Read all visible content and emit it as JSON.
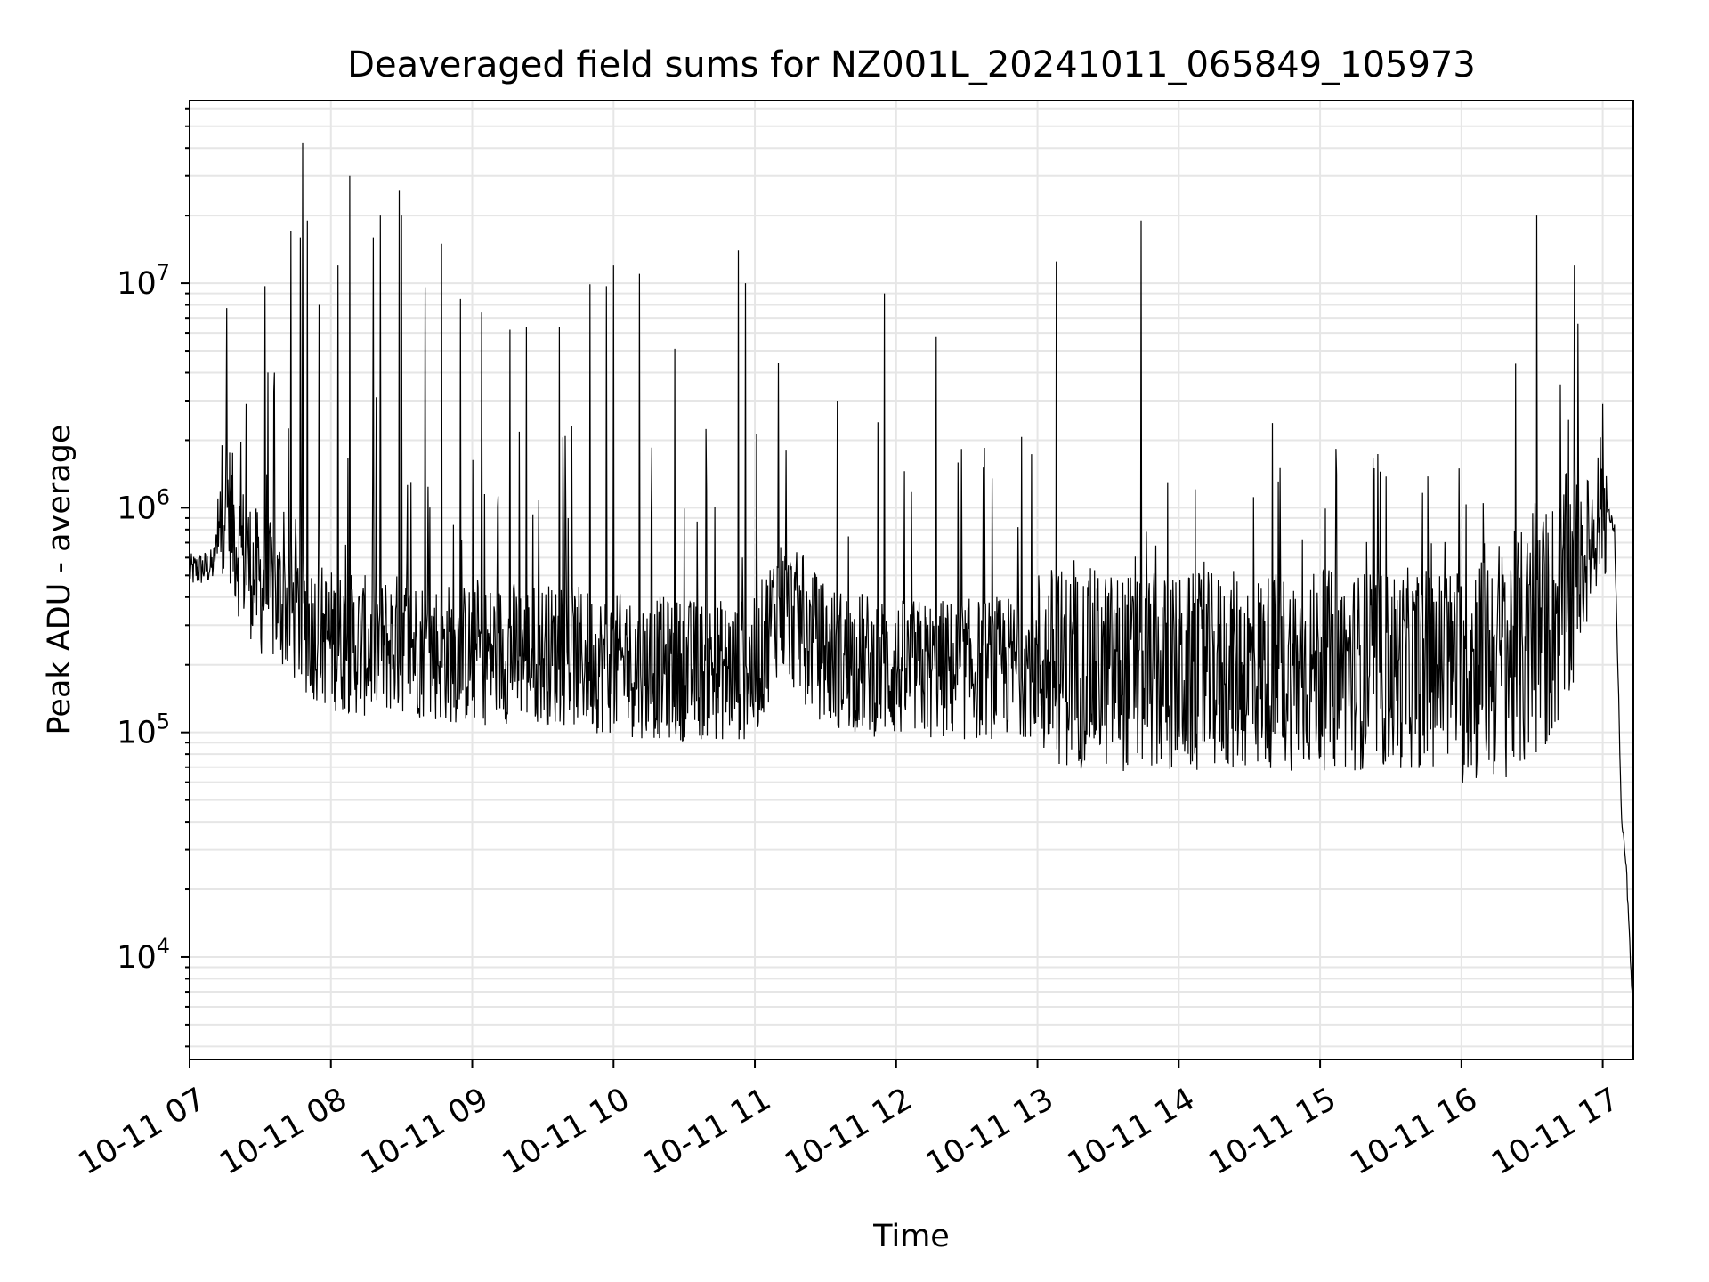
{
  "chart_data": {
    "type": "line",
    "title": "Deaveraged field sums for NZ001L_20241011_065849_105973",
    "xlabel": "Time",
    "ylabel": "Peak ADU - average",
    "yscale": "log",
    "grid": true,
    "line_color": "#000000",
    "grid_color": "#e6e6e6",
    "xlim": [
      "10-11 07:00",
      "10-11 17:13"
    ],
    "ylim": [
      3500,
      65000000
    ],
    "x_ticks": [
      "10-11 07",
      "10-11 08",
      "10-11 09",
      "10-11 10",
      "10-11 11",
      "10-11 12",
      "10-11 13",
      "10-11 14",
      "10-11 15",
      "10-11 16",
      "10-11 17"
    ],
    "y_ticks": [
      {
        "value": 10000,
        "base": "10",
        "exp": "4"
      },
      {
        "value": 100000,
        "base": "10",
        "exp": "5"
      },
      {
        "value": 1000000,
        "base": "10",
        "exp": "6"
      },
      {
        "value": 10000000,
        "base": "10",
        "exp": "7"
      }
    ],
    "series": [
      {
        "x": [
          "10-11 07:00",
          "10-11 07:10",
          "10-11 07:15",
          "10-11 07:20",
          "10-11 07:30",
          "10-11 07:40",
          "10-11 07:50",
          "10-11 08:00",
          "10-11 08:15",
          "10-11 08:30",
          "10-11 08:45",
          "10-11 09:00",
          "10-11 09:20",
          "10-11 09:40",
          "10-11 10:00",
          "10-11 10:30",
          "10-11 11:00",
          "10-11 11:10",
          "10-11 11:30",
          "10-11 12:00",
          "10-11 12:30",
          "10-11 13:00",
          "10-11 13:30",
          "10-11 14:00",
          "10-11 14:30",
          "10-11 15:00",
          "10-11 15:30",
          "10-11 16:00",
          "10-11 16:30",
          "10-11 16:50",
          "10-11 17:00",
          "10-11 17:05",
          "10-11 17:08",
          "10-11 17:10",
          "10-11 17:13"
        ],
        "y": [
          520000,
          550000,
          1200000,
          700000,
          450000,
          380000,
          300000,
          260000,
          240000,
          250000,
          230000,
          220000,
          230000,
          220000,
          200000,
          190000,
          190000,
          380000,
          220000,
          190000,
          190000,
          200000,
          190000,
          180000,
          190000,
          190000,
          190000,
          200000,
          230000,
          500000,
          1100000,
          800000,
          40000,
          25000,
          5000
        ]
      }
    ],
    "spikes": [
      {
        "x": "10-11 07:12",
        "y": 1100000
      },
      {
        "x": "10-11 07:24",
        "y": 2900000
      },
      {
        "x": "10-11 07:32",
        "y": 9700000
      },
      {
        "x": "10-11 07:36",
        "y": 4000000
      },
      {
        "x": "10-11 07:43",
        "y": 17000000
      },
      {
        "x": "10-11 07:47",
        "y": 16000000
      },
      {
        "x": "10-11 07:48",
        "y": 42000000
      },
      {
        "x": "10-11 07:50",
        "y": 19000000
      },
      {
        "x": "10-11 07:55",
        "y": 8000000
      },
      {
        "x": "10-11 08:03",
        "y": 12000000
      },
      {
        "x": "10-11 08:08",
        "y": 30000000
      },
      {
        "x": "10-11 08:18",
        "y": 16000000
      },
      {
        "x": "10-11 08:21",
        "y": 20000000
      },
      {
        "x": "10-11 08:29",
        "y": 26000000
      },
      {
        "x": "10-11 08:30",
        "y": 20000000
      },
      {
        "x": "10-11 08:40",
        "y": 9600000
      },
      {
        "x": "10-11 08:47",
        "y": 15000000
      },
      {
        "x": "10-11 08:55",
        "y": 8500000
      },
      {
        "x": "10-11 09:04",
        "y": 7400000
      },
      {
        "x": "10-11 09:16",
        "y": 6200000
      },
      {
        "x": "10-11 09:23",
        "y": 6400000
      },
      {
        "x": "10-11 09:37",
        "y": 6400000
      },
      {
        "x": "10-11 09:50",
        "y": 9900000
      },
      {
        "x": "10-11 09:57",
        "y": 9700000
      },
      {
        "x": "10-11 10:00",
        "y": 12000000
      },
      {
        "x": "10-11 10:11",
        "y": 11000000
      },
      {
        "x": "10-11 10:26",
        "y": 5100000
      },
      {
        "x": "10-11 10:53",
        "y": 14000000
      },
      {
        "x": "10-11 10:56",
        "y": 10000000
      },
      {
        "x": "10-11 11:10",
        "y": 4400000
      },
      {
        "x": "10-11 11:35",
        "y": 3000000
      },
      {
        "x": "10-11 11:55",
        "y": 9000000
      },
      {
        "x": "10-11 12:17",
        "y": 5800000
      },
      {
        "x": "10-11 13:08",
        "y": 12500000
      },
      {
        "x": "10-11 13:44",
        "y": 19000000
      },
      {
        "x": "10-11 16:32",
        "y": 20000000
      },
      {
        "x": "10-11 16:48",
        "y": 12000000
      },
      {
        "x": "10-11 17:00",
        "y": 2900000
      }
    ]
  }
}
